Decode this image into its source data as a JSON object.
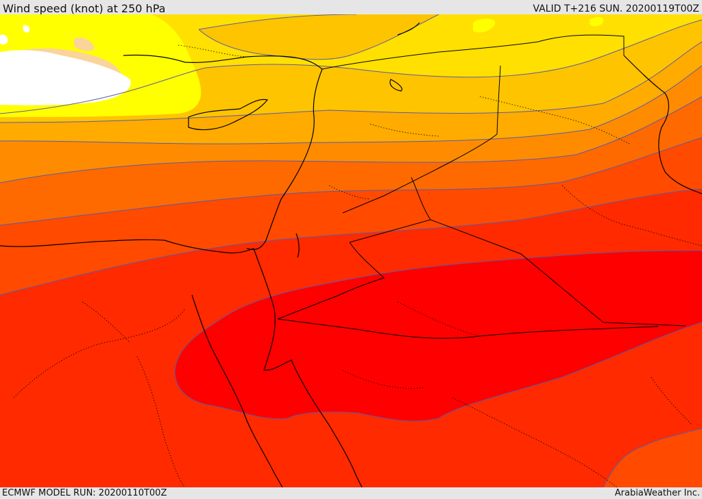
{
  "header": {
    "title": "Wind speed (knot) at 250 hPa",
    "valid": "VALID T+216 SUN. 20200119T00Z"
  },
  "footer": {
    "model_run": "ECMWF MODEL RUN: 20200110T00Z",
    "credit": "ArabiaWeather Inc."
  },
  "palette": {
    "white": "#ffffff",
    "light_orange": "#fad49a",
    "yellow": "#ffff00",
    "gold": "#ffe000",
    "amber": "#ffc400",
    "orange_light": "#ffab00",
    "orange": "#ff8c00",
    "orange_red": "#ff6a00",
    "red_orange": "#ff4a00",
    "red_mid": "#ff2a00",
    "red": "#ff0000",
    "contour": "#5a5aa8",
    "border": "#000000"
  }
}
